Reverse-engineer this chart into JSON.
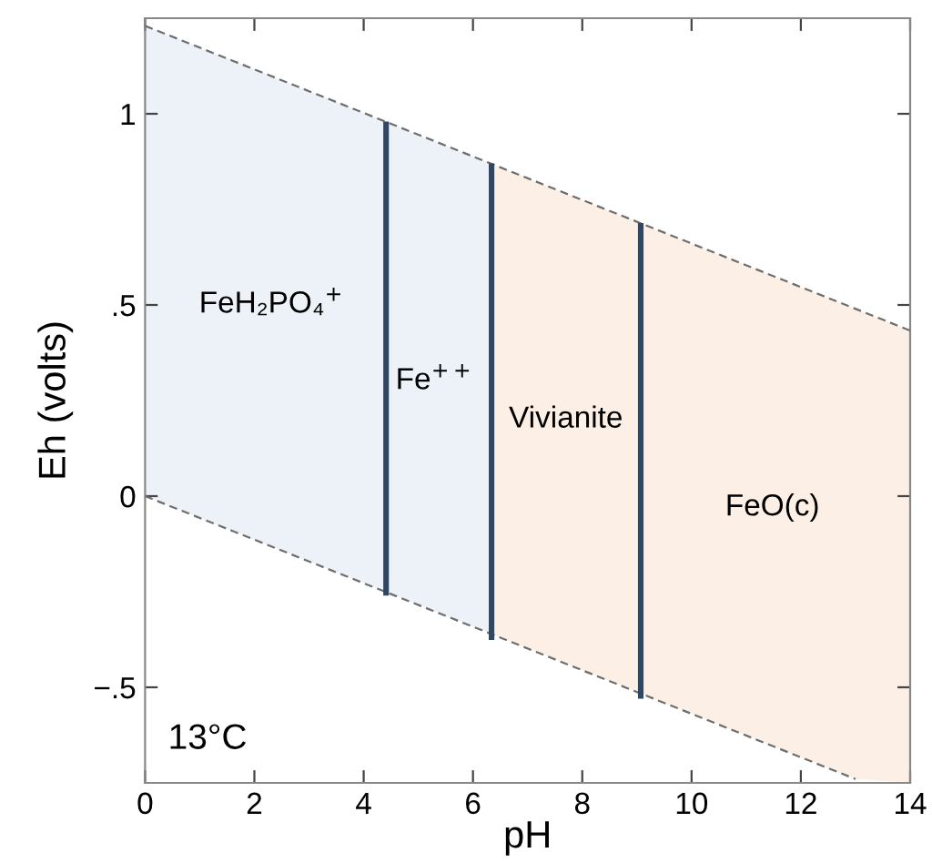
{
  "chart_data": {
    "type": "line",
    "xlabel": "pH",
    "ylabel": "Eh (volts)",
    "xlim": [
      0,
      14
    ],
    "ylim": [
      -0.75,
      1.25
    ],
    "xticks": [
      0,
      2,
      4,
      6,
      8,
      10,
      12,
      14
    ],
    "yticks": [
      {
        "value": -0.5,
        "label": "−.5"
      },
      0,
      {
        "value": 0.5,
        "label": ".5"
      },
      1
    ],
    "series": [
      {
        "color": "#6e6e6e",
        "line_style": "dashed",
        "x": [
          0,
          14
        ],
        "values": [
          1.23,
          0.433
        ]
      },
      {
        "color": "#6e6e6e",
        "line_style": "dashed",
        "x": [
          0,
          13
        ],
        "values": [
          0,
          -0.74
        ]
      },
      {
        "color": "#2f4765",
        "line_style": "solid",
        "x": [
          4.41,
          4.41
        ],
        "values": [
          0.98,
          -0.26
        ]
      },
      {
        "color": "#2f4765",
        "line_style": "solid",
        "x": [
          6.34,
          6.34
        ],
        "values": [
          0.87,
          -0.376
        ]
      },
      {
        "color": "#2f4765",
        "line_style": "solid",
        "x": [
          9.07,
          9.07
        ],
        "values": [
          0.714,
          -0.53
        ]
      }
    ],
    "bands": [
      {
        "axis": "x",
        "from": 0,
        "to": 6.34,
        "color": "#edf1f8"
      },
      {
        "axis": "x",
        "from": 6.34,
        "to": 14,
        "color": "#fcf0e6"
      }
    ],
    "annotations": [
      "FeH₂PO₄$^{+}$",
      "Fe$^{++}$",
      "Vivianite",
      "FeO(c)",
      "13°C"
    ]
  }
}
